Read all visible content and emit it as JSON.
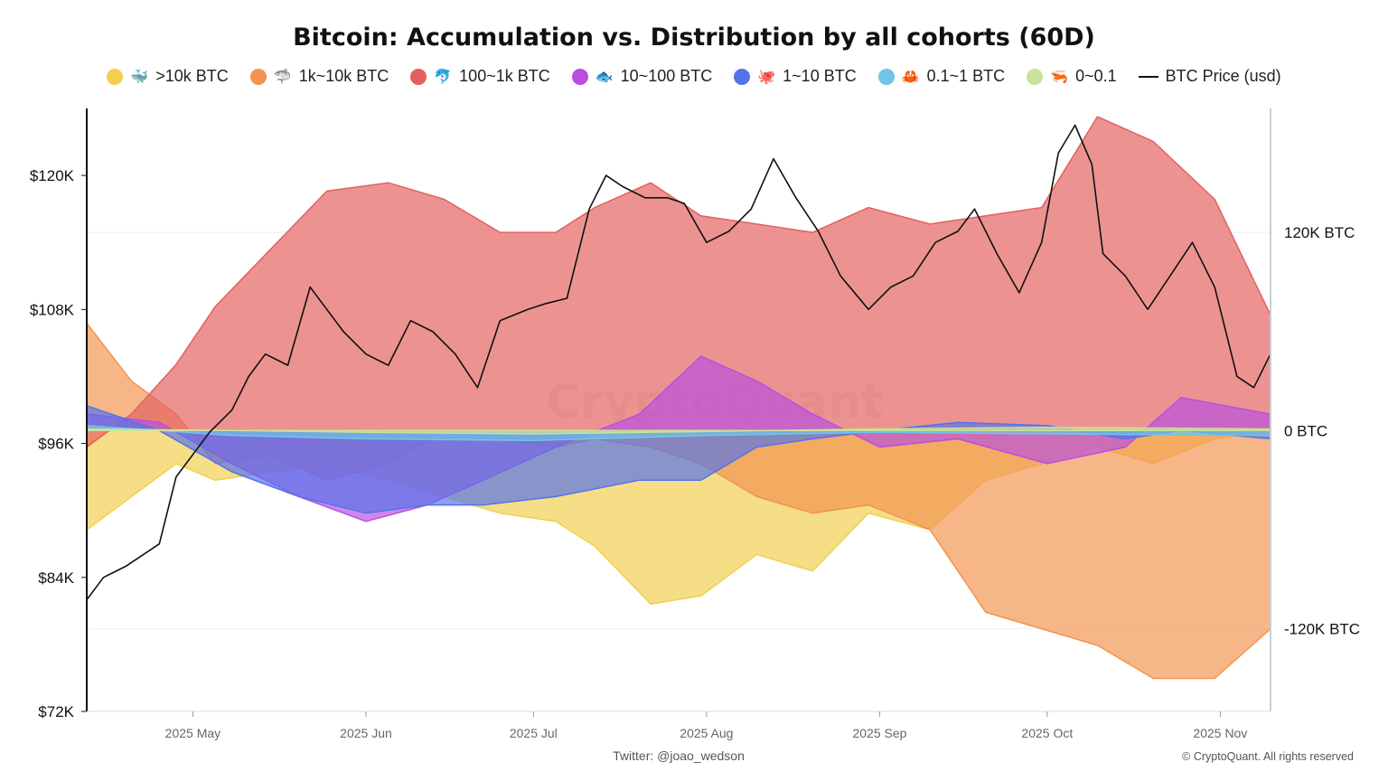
{
  "colors": {
    "gt10k": "#f2cf4e",
    "k1_10k": "#f29450",
    "h100_1k": "#e3605f",
    "t10_100": "#b84fe0",
    "o1_10": "#5473ea",
    "p01_1": "#6fc6e6",
    "z0_01": "#c8e39a",
    "price": "#111111"
  },
  "chart_data": {
    "type": "area",
    "title": "Bitcoin: Accumulation vs. Distribution by all cohorts (60D)",
    "legend_position": "top",
    "grid": true,
    "x_range": [
      "2025-04-12",
      "2025-11-10"
    ],
    "x_ticks": [
      "2025 May",
      "2025 Jun",
      "2025 Jul",
      "2025 Aug",
      "2025 Sep",
      "2025 Oct",
      "2025 Nov"
    ],
    "x_tick_dates": [
      "2025-05-01",
      "2025-06-01",
      "2025-07-01",
      "2025-08-01",
      "2025-09-01",
      "2025-10-01",
      "2025-11-01"
    ],
    "y_left": {
      "label": "",
      "range": [
        72000,
        126000
      ],
      "ticks": [
        "$72K",
        "$84K",
        "$96K",
        "$108K",
        "$120K"
      ],
      "tick_values": [
        72000,
        84000,
        96000,
        108000,
        120000
      ]
    },
    "y_right": {
      "label": "",
      "range": [
        -170000,
        195000
      ],
      "ticks": [
        "-120K BTC",
        "0 BTC",
        "120K BTC"
      ],
      "tick_values": [
        -120000,
        0,
        120000
      ]
    },
    "series": [
      {
        "name": ">10k BTC",
        "key": "gt10k",
        "axis": "right",
        "x": [
          "2025-04-12",
          "2025-04-20",
          "2025-04-28",
          "2025-05-05",
          "2025-05-15",
          "2025-05-25",
          "2025-06-05",
          "2025-06-15",
          "2025-06-25",
          "2025-07-05",
          "2025-07-12",
          "2025-07-22",
          "2025-07-31",
          "2025-08-10",
          "2025-08-20",
          "2025-08-30",
          "2025-09-10",
          "2025-09-20",
          "2025-09-30",
          "2025-10-10",
          "2025-10-20",
          "2025-10-31",
          "2025-11-10"
        ],
        "values": [
          -60000,
          -40000,
          -20000,
          -30000,
          -25000,
          -20000,
          -30000,
          -40000,
          -50000,
          -55000,
          -70000,
          -105000,
          -100000,
          -75000,
          -85000,
          -50000,
          -60000,
          -30000,
          -20000,
          -10000,
          -20000,
          -5000,
          0
        ]
      },
      {
        "name": "1k~10k BTC",
        "key": "k1_10k",
        "axis": "right",
        "x": [
          "2025-04-12",
          "2025-04-20",
          "2025-04-28",
          "2025-05-05",
          "2025-05-15",
          "2025-05-25",
          "2025-06-05",
          "2025-06-15",
          "2025-06-25",
          "2025-07-05",
          "2025-07-12",
          "2025-07-22",
          "2025-07-31",
          "2025-08-10",
          "2025-08-20",
          "2025-08-30",
          "2025-09-10",
          "2025-09-20",
          "2025-09-30",
          "2025-10-10",
          "2025-10-20",
          "2025-10-31",
          "2025-11-10"
        ],
        "values": [
          65000,
          30000,
          10000,
          -20000,
          -15000,
          -30000,
          -20000,
          0,
          -5000,
          -10000,
          -5000,
          -10000,
          -20000,
          -40000,
          -50000,
          -45000,
          -60000,
          -110000,
          -120000,
          -130000,
          -150000,
          -150000,
          -120000
        ]
      },
      {
        "name": "100~1k BTC",
        "key": "h100_1k",
        "axis": "right",
        "x": [
          "2025-04-12",
          "2025-04-20",
          "2025-04-28",
          "2025-05-05",
          "2025-05-15",
          "2025-05-25",
          "2025-06-05",
          "2025-06-15",
          "2025-06-25",
          "2025-07-05",
          "2025-07-12",
          "2025-07-22",
          "2025-07-31",
          "2025-08-10",
          "2025-08-20",
          "2025-08-30",
          "2025-09-10",
          "2025-09-20",
          "2025-09-30",
          "2025-10-10",
          "2025-10-20",
          "2025-10-31",
          "2025-11-10"
        ],
        "values": [
          -10000,
          10000,
          40000,
          75000,
          110000,
          145000,
          150000,
          140000,
          120000,
          120000,
          135000,
          150000,
          130000,
          125000,
          120000,
          135000,
          125000,
          130000,
          135000,
          190000,
          175000,
          140000,
          70000
        ]
      },
      {
        "name": "10~100 BTC",
        "key": "t10_100",
        "axis": "right",
        "x": [
          "2025-04-12",
          "2025-04-25",
          "2025-05-08",
          "2025-05-20",
          "2025-06-01",
          "2025-06-12",
          "2025-06-22",
          "2025-07-05",
          "2025-07-20",
          "2025-07-31",
          "2025-08-10",
          "2025-08-20",
          "2025-09-01",
          "2025-09-15",
          "2025-10-01",
          "2025-10-15",
          "2025-10-25",
          "2025-11-10"
        ],
        "values": [
          10000,
          5000,
          -20000,
          -40000,
          -55000,
          -45000,
          -30000,
          -10000,
          10000,
          45000,
          30000,
          10000,
          -10000,
          -5000,
          -20000,
          -10000,
          20000,
          10000
        ]
      },
      {
        "name": "1~10 BTC",
        "key": "o1_10",
        "axis": "right",
        "x": [
          "2025-04-12",
          "2025-04-25",
          "2025-05-08",
          "2025-05-20",
          "2025-06-01",
          "2025-06-12",
          "2025-06-22",
          "2025-07-05",
          "2025-07-20",
          "2025-07-31",
          "2025-08-10",
          "2025-08-20",
          "2025-09-01",
          "2025-09-15",
          "2025-10-01",
          "2025-10-15",
          "2025-10-25",
          "2025-11-10"
        ],
        "values": [
          15000,
          0,
          -25000,
          -40000,
          -50000,
          -45000,
          -45000,
          -40000,
          -30000,
          -30000,
          -10000,
          -5000,
          0,
          5000,
          3000,
          -5000,
          0,
          -5000
        ]
      },
      {
        "name": "0.1~1 BTC",
        "key": "p01_1",
        "axis": "right",
        "x": [
          "2025-04-12",
          "2025-05-08",
          "2025-06-01",
          "2025-07-01",
          "2025-08-01",
          "2025-09-01",
          "2025-10-01",
          "2025-11-10"
        ],
        "values": [
          3000,
          -3000,
          -5000,
          -6000,
          -3000,
          -1000,
          -2000,
          -3000
        ]
      },
      {
        "name": "0~0.1",
        "key": "z0_01",
        "axis": "right",
        "x": [
          "2025-04-12",
          "2025-05-08",
          "2025-06-01",
          "2025-07-01",
          "2025-08-01",
          "2025-09-01",
          "2025-10-01",
          "2025-11-10"
        ],
        "values": [
          1000,
          0,
          -1000,
          -2000,
          -500,
          1000,
          2000,
          1000
        ]
      },
      {
        "name": "BTC Price (usd)",
        "key": "price",
        "axis": "left",
        "style": "line",
        "x": [
          "2025-04-12",
          "2025-04-15",
          "2025-04-19",
          "2025-04-22",
          "2025-04-25",
          "2025-04-28",
          "2025-05-01",
          "2025-05-04",
          "2025-05-08",
          "2025-05-11",
          "2025-05-14",
          "2025-05-18",
          "2025-05-22",
          "2025-05-25",
          "2025-05-28",
          "2025-06-01",
          "2025-06-05",
          "2025-06-09",
          "2025-06-13",
          "2025-06-17",
          "2025-06-21",
          "2025-06-25",
          "2025-06-30",
          "2025-07-03",
          "2025-07-07",
          "2025-07-11",
          "2025-07-14",
          "2025-07-17",
          "2025-07-21",
          "2025-07-25",
          "2025-07-28",
          "2025-08-01",
          "2025-08-05",
          "2025-08-09",
          "2025-08-13",
          "2025-08-17",
          "2025-08-21",
          "2025-08-25",
          "2025-08-30",
          "2025-09-03",
          "2025-09-07",
          "2025-09-11",
          "2025-09-15",
          "2025-09-18",
          "2025-09-22",
          "2025-09-26",
          "2025-09-30",
          "2025-10-03",
          "2025-10-06",
          "2025-10-09",
          "2025-10-11",
          "2025-10-15",
          "2025-10-19",
          "2025-10-23",
          "2025-10-27",
          "2025-10-31",
          "2025-11-04",
          "2025-11-07",
          "2025-11-10"
        ],
        "values": [
          82000,
          84000,
          85000,
          86000,
          87000,
          93000,
          95000,
          97000,
          99000,
          102000,
          104000,
          103000,
          110000,
          108000,
          106000,
          104000,
          103000,
          107000,
          106000,
          104000,
          101000,
          107000,
          108000,
          108500,
          109000,
          117000,
          120000,
          119000,
          118000,
          118000,
          117500,
          114000,
          115000,
          117000,
          121500,
          118000,
          115000,
          111000,
          108000,
          110000,
          111000,
          114000,
          115000,
          117000,
          113000,
          109500,
          114000,
          122000,
          124500,
          121000,
          113000,
          111000,
          108000,
          111000,
          114000,
          110000,
          102000,
          101000,
          104000
        ]
      }
    ]
  },
  "footer": {
    "left": "Twitter: @joao_wedson",
    "right": "© CryptoQuant. All rights reserved"
  },
  "watermark": "CryptoQuant",
  "legend": [
    {
      "key": "gt10k",
      "emoji": "🐳",
      "label": ">10k BTC"
    },
    {
      "key": "k1_10k",
      "emoji": "🦈",
      "label": "1k~10k BTC"
    },
    {
      "key": "h100_1k",
      "emoji": "🐬",
      "label": "100~1k BTC"
    },
    {
      "key": "t10_100",
      "emoji": "🐟",
      "label": "10~100 BTC"
    },
    {
      "key": "o1_10",
      "emoji": "🐙",
      "label": "1~10 BTC"
    },
    {
      "key": "p01_1",
      "emoji": "🦀",
      "label": "0.1~1 BTC"
    },
    {
      "key": "z0_01",
      "emoji": "🦐",
      "label": "0~0.1"
    },
    {
      "key": "price",
      "emoji": "",
      "label": "BTC Price (usd)"
    }
  ]
}
